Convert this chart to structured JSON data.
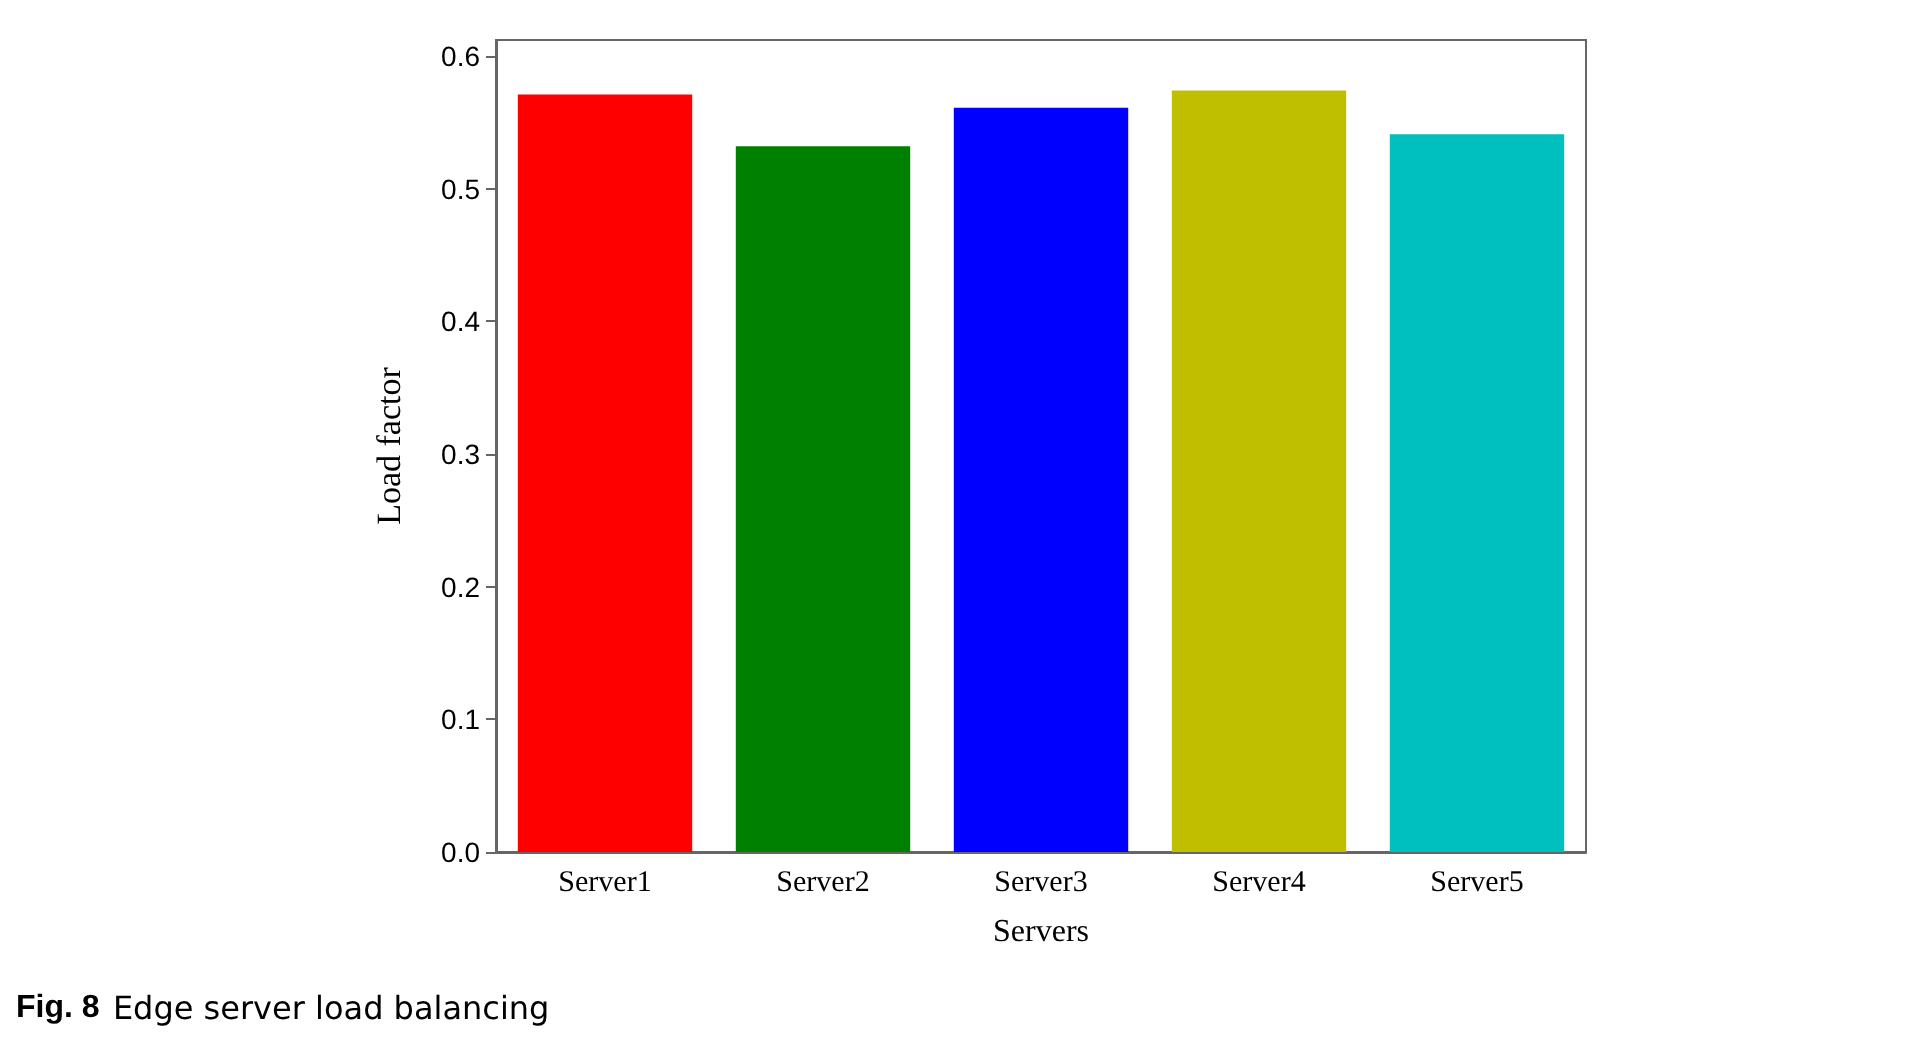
{
  "chart_data": {
    "type": "bar",
    "xlabel": "Servers",
    "ylabel": "Load factor",
    "categories": [
      "Server1",
      "Server2",
      "Server3",
      "Server4",
      "Server5"
    ],
    "values": [
      0.571,
      0.532,
      0.561,
      0.574,
      0.541
    ],
    "colors": [
      "#ff0000",
      "#008000",
      "#0000ff",
      "#bfbf00",
      "#00bfbf"
    ],
    "ylim": [
      0,
      0.612
    ],
    "yticks": [
      {
        "value": 0,
        "label": "0.0"
      },
      0.1,
      0.2,
      0.3,
      0.4,
      0.5,
      0.6
    ],
    "grid": false,
    "annotations": [
      "Fig. 8 Edge server load balancing"
    ]
  }
}
